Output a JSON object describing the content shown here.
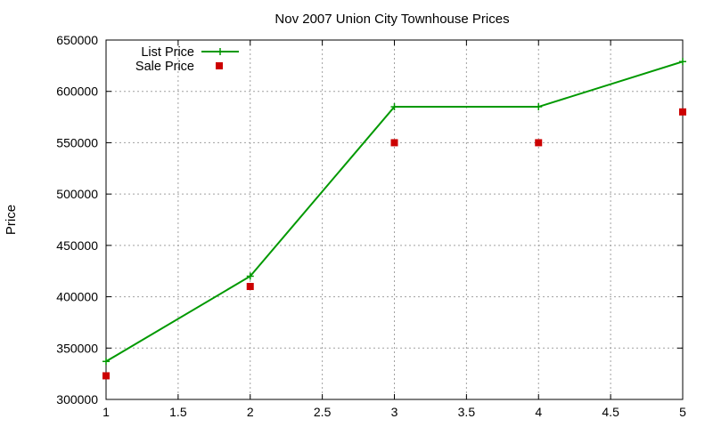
{
  "chart_data": {
    "type": "line",
    "title": "Nov 2007 Union City Townhouse Prices",
    "xlabel": "",
    "ylabel": "Price",
    "xlim": [
      1,
      5
    ],
    "ylim": [
      300000,
      650000
    ],
    "x_ticks": [
      "1",
      "1.5",
      "2",
      "2.5",
      "3",
      "3.5",
      "4",
      "4.5",
      "5"
    ],
    "y_ticks": [
      "300000",
      "350000",
      "400000",
      "450000",
      "500000",
      "550000",
      "600000",
      "650000"
    ],
    "grid": true,
    "legend_position": "top-left",
    "series": [
      {
        "name": "List Price",
        "style": "lines+points",
        "marker": "plus",
        "color": "#009900",
        "x": [
          1,
          2,
          3,
          4,
          5
        ],
        "values": [
          337000,
          420000,
          585000,
          585000,
          629000
        ]
      },
      {
        "name": "Sale Price",
        "style": "points",
        "marker": "square",
        "color": "#cc0000",
        "x": [
          1,
          2,
          3,
          4,
          5
        ],
        "values": [
          323000,
          410000,
          550000,
          550000,
          580000
        ]
      }
    ]
  }
}
